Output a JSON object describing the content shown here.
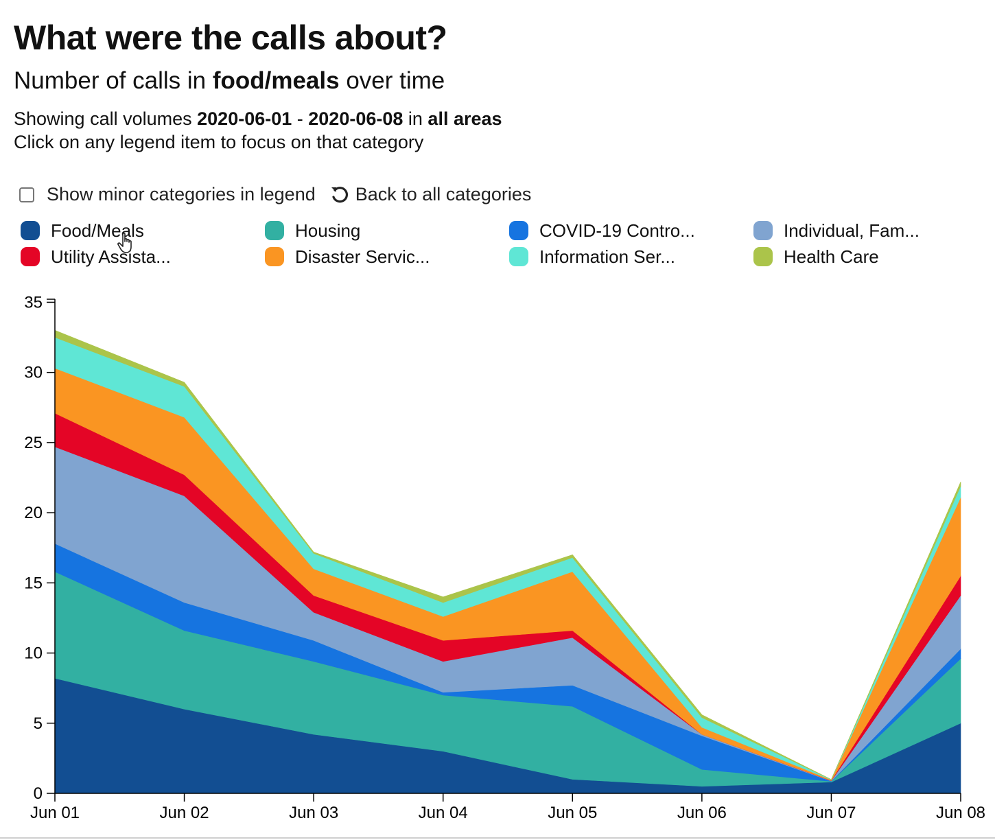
{
  "header": {
    "title": "What were the calls about?",
    "subtitle_prefix": "Number of calls in ",
    "subtitle_category": "food/meals",
    "subtitle_suffix": " over time",
    "desc_prefix": "Showing call volumes ",
    "date_start": "2020-06-01",
    "date_sep": " - ",
    "date_end": "2020-06-08",
    "desc_in": " in ",
    "area": "all areas",
    "instruction": "Click on any legend item to focus on that category"
  },
  "controls": {
    "minor_label": "Show minor categories in legend",
    "back_label": "Back to all categories",
    "minor_checked": false
  },
  "legend": [
    {
      "label": "Food/Meals",
      "color": "#124e92"
    },
    {
      "label": "Housing",
      "color": "#32b0a2"
    },
    {
      "label": "COVID-19 Contro...",
      "color": "#1674e0"
    },
    {
      "label": "Individual, Fam...",
      "color": "#80a4d0"
    },
    {
      "label": "Utility Assista...",
      "color": "#e40526"
    },
    {
      "label": "Disaster Servic...",
      "color": "#fa9522"
    },
    {
      "label": "Information Ser...",
      "color": "#5fe6d5"
    },
    {
      "label": "Health Care",
      "color": "#abc44a"
    }
  ],
  "chart_data": {
    "type": "area",
    "stacked": true,
    "x": [
      "Jun 01",
      "Jun 02",
      "Jun 03",
      "Jun 04",
      "Jun 05",
      "Jun 06",
      "Jun 07",
      "Jun 08"
    ],
    "ylim": [
      0,
      36
    ],
    "yticks": [
      0,
      5,
      10,
      15,
      20,
      25,
      30,
      35
    ],
    "series": [
      {
        "name": "Food/Meals",
        "color": "#124e92",
        "values": [
          8.2,
          6.0,
          4.2,
          3.0,
          1.0,
          0.5,
          0.8,
          5.0
        ]
      },
      {
        "name": "Housing",
        "color": "#32b0a2",
        "values": [
          7.6,
          5.6,
          5.2,
          4.0,
          5.2,
          1.2,
          0.05,
          4.6
        ]
      },
      {
        "name": "COVID-19 Contro...",
        "color": "#1674e0",
        "values": [
          2.0,
          2.0,
          1.5,
          0.2,
          1.5,
          2.4,
          0.02,
          0.7
        ]
      },
      {
        "name": "Individual, Fam...",
        "color": "#80a4d0",
        "values": [
          6.9,
          7.6,
          2.0,
          2.2,
          3.4,
          0.1,
          0.02,
          3.8
        ]
      },
      {
        "name": "Utility Assista...",
        "color": "#e40526",
        "values": [
          2.4,
          1.5,
          1.2,
          1.5,
          0.5,
          0.0,
          0.02,
          1.4
        ]
      },
      {
        "name": "Disaster Servic...",
        "color": "#fa9522",
        "values": [
          3.2,
          4.1,
          1.9,
          1.7,
          4.2,
          0.5,
          0.05,
          5.6
        ]
      },
      {
        "name": "Information Ser...",
        "color": "#5fe6d5",
        "values": [
          2.2,
          2.2,
          1.1,
          1.0,
          1.0,
          0.7,
          0.02,
          0.8
        ]
      },
      {
        "name": "Health Care",
        "color": "#abc44a",
        "values": [
          0.5,
          0.3,
          0.1,
          0.4,
          0.2,
          0.2,
          0.01,
          0.3
        ]
      }
    ]
  }
}
